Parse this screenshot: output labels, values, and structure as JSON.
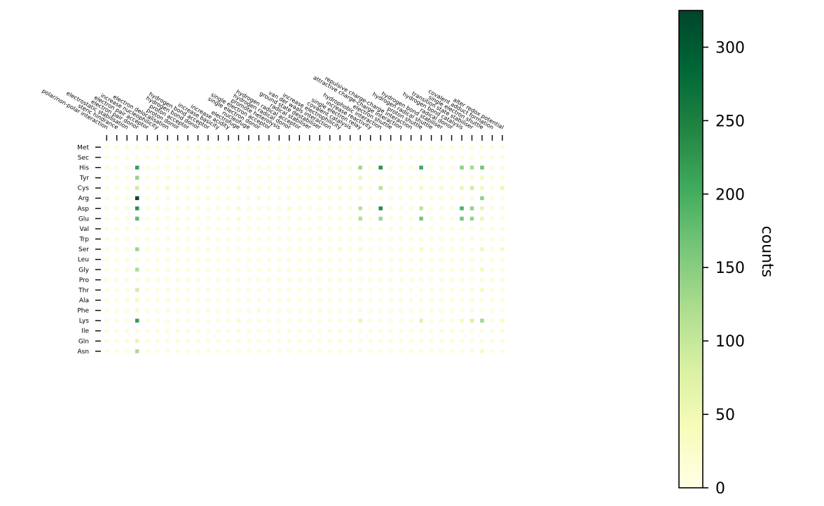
{
  "chart_data": {
    "type": "heatmap",
    "rows": [
      "Met",
      "Sec",
      "His",
      "Tyr",
      "Cys",
      "Arg",
      "Asp",
      "Glu",
      "Val",
      "Trp",
      "Ser",
      "Leu",
      "Gly",
      "Pro",
      "Thr",
      "Ala",
      "Phe",
      "Lys",
      "Ile",
      "Gln",
      "Asn"
    ],
    "columns": [
      "polar/non-polar interaction",
      "steric hindrance",
      "electrostatic stabilisation",
      "electron pair donor",
      "electron pair acceptor",
      "increase nucleophilicity",
      "electron delocalisation",
      "proton donor",
      "proton acceptor",
      "hydrogen bond donor",
      "hydrogen bond acceptor",
      "increase basicity",
      "increase acidity",
      "electrofuge",
      "nucleofuge",
      "single electron donor",
      "single electron acceptor",
      "promote heterolysis",
      "hydrogen radical donor",
      "hydrogen radical acceptor",
      "radical stabiliser",
      "ground state destabiliser",
      "van der waals interaction",
      "increase electrophilicity",
      "covalent catalysis",
      "single electron relay",
      "increase reactivity",
      "hydrophobic interaction",
      "electron shuttle",
      "attractive charge-charge interaction",
      "repulsive charge-charge interaction",
      "proton shuttle",
      "hydrogen radical shuttle",
      "hydrogen bond stabiliser",
      "radical donor",
      "hydrogen bond catalysis",
      "transition state stabiliser",
      "single electron shuttle",
      "covalent adduct formation",
      "alter redox potential"
    ],
    "cells": [
      {
        "row": "His",
        "col": 3,
        "value": 215
      },
      {
        "row": "His",
        "col": 25,
        "value": 130
      },
      {
        "row": "His",
        "col": 27,
        "value": 230
      },
      {
        "row": "His",
        "col": 31,
        "value": 205
      },
      {
        "row": "His",
        "col": 35,
        "value": 145
      },
      {
        "row": "His",
        "col": 36,
        "value": 125
      },
      {
        "row": "His",
        "col": 37,
        "value": 165
      },
      {
        "row": "Tyr",
        "col": 3,
        "value": 140
      },
      {
        "row": "Tyr",
        "col": 25,
        "value": 55
      },
      {
        "row": "Tyr",
        "col": 37,
        "value": 45
      },
      {
        "row": "Cys",
        "col": 3,
        "value": 90
      },
      {
        "row": "Cys",
        "col": 6,
        "value": 40
      },
      {
        "row": "Cys",
        "col": 13,
        "value": 30
      },
      {
        "row": "Cys",
        "col": 23,
        "value": 35
      },
      {
        "row": "Cys",
        "col": 25,
        "value": 40
      },
      {
        "row": "Cys",
        "col": 27,
        "value": 110
      },
      {
        "row": "Cys",
        "col": 31,
        "value": 45
      },
      {
        "row": "Cys",
        "col": 33,
        "value": 35
      },
      {
        "row": "Cys",
        "col": 35,
        "value": 60
      },
      {
        "row": "Cys",
        "col": 36,
        "value": 90
      },
      {
        "row": "Cys",
        "col": 37,
        "value": 45
      },
      {
        "row": "Cys",
        "col": 39,
        "value": 55
      },
      {
        "row": "Arg",
        "col": 3,
        "value": 323
      },
      {
        "row": "Arg",
        "col": 37,
        "value": 145
      },
      {
        "row": "Arg",
        "col": 15,
        "value": 25
      },
      {
        "row": "Asp",
        "col": 3,
        "value": 230
      },
      {
        "row": "Asp",
        "col": 13,
        "value": 40
      },
      {
        "row": "Asp",
        "col": 18,
        "value": 35
      },
      {
        "row": "Asp",
        "col": 25,
        "value": 110
      },
      {
        "row": "Asp",
        "col": 27,
        "value": 235
      },
      {
        "row": "Asp",
        "col": 31,
        "value": 105
      },
      {
        "row": "Asp",
        "col": 35,
        "value": 195
      },
      {
        "row": "Asp",
        "col": 36,
        "value": 140
      },
      {
        "row": "Asp",
        "col": 37,
        "value": 60
      },
      {
        "row": "Glu",
        "col": 3,
        "value": 180
      },
      {
        "row": "Glu",
        "col": 13,
        "value": 25
      },
      {
        "row": "Glu",
        "col": 25,
        "value": 115
      },
      {
        "row": "Glu",
        "col": 27,
        "value": 135
      },
      {
        "row": "Glu",
        "col": 31,
        "value": 165
      },
      {
        "row": "Glu",
        "col": 35,
        "value": 160
      },
      {
        "row": "Glu",
        "col": 36,
        "value": 140
      },
      {
        "row": "Glu",
        "col": 37,
        "value": 55
      },
      {
        "row": "Ser",
        "col": 3,
        "value": 135
      },
      {
        "row": "Ser",
        "col": 23,
        "value": 25
      },
      {
        "row": "Ser",
        "col": 25,
        "value": 40
      },
      {
        "row": "Ser",
        "col": 31,
        "value": 35
      },
      {
        "row": "Ser",
        "col": 37,
        "value": 50
      },
      {
        "row": "Ser",
        "col": 39,
        "value": 40
      },
      {
        "row": "Gly",
        "col": 3,
        "value": 120
      },
      {
        "row": "Gly",
        "col": 37,
        "value": 45
      },
      {
        "row": "Thr",
        "col": 3,
        "value": 85
      },
      {
        "row": "Thr",
        "col": 37,
        "value": 40
      },
      {
        "row": "Ala",
        "col": 3,
        "value": 45
      },
      {
        "row": "Phe",
        "col": 3,
        "value": 35
      },
      {
        "row": "Phe",
        "col": 15,
        "value": 25
      },
      {
        "row": "Lys",
        "col": 3,
        "value": 220
      },
      {
        "row": "Lys",
        "col": 13,
        "value": 35
      },
      {
        "row": "Lys",
        "col": 25,
        "value": 60
      },
      {
        "row": "Lys",
        "col": 31,
        "value": 70
      },
      {
        "row": "Lys",
        "col": 35,
        "value": 45
      },
      {
        "row": "Lys",
        "col": 36,
        "value": 80
      },
      {
        "row": "Lys",
        "col": 37,
        "value": 130
      },
      {
        "row": "Lys",
        "col": 39,
        "value": 35
      },
      {
        "row": "Gln",
        "col": 3,
        "value": 60
      },
      {
        "row": "Asn",
        "col": 3,
        "value": 125
      },
      {
        "row": "Asn",
        "col": 37,
        "value": 40
      }
    ],
    "background_value": 12,
    "colorbar": {
      "title": "counts",
      "min": 0,
      "max": 325,
      "ticks": [
        0,
        50,
        100,
        150,
        200,
        250,
        300
      ],
      "colormap": "YlGn",
      "stops": [
        "#ffffe5",
        "#f7fcb9",
        "#d9f0a3",
        "#addd8e",
        "#78c679",
        "#41ab5d",
        "#238443",
        "#006837",
        "#004529"
      ]
    },
    "grid": false
  }
}
